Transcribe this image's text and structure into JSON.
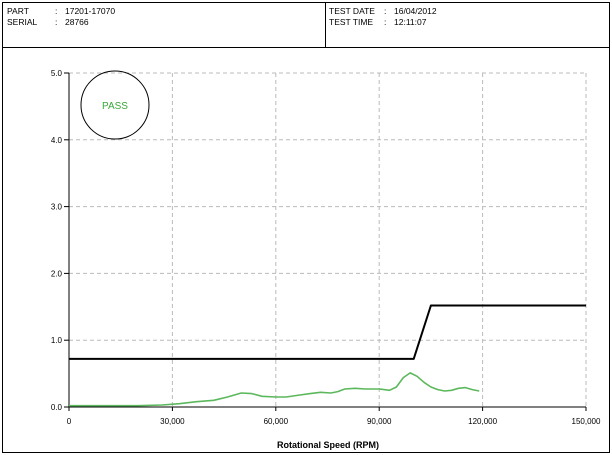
{
  "header": {
    "part_label": "PART",
    "part_value": "17201-17070",
    "serial_label": "SERIAL",
    "serial_value": "28766",
    "test_date_label": "TEST DATE",
    "test_date_value": "16/04/2012",
    "test_time_label": "TEST TIME",
    "test_time_value": "12:11:07",
    "separator": ":"
  },
  "status": {
    "text": "PASS",
    "color": "#3aa83a"
  },
  "colors": {
    "limit_line": "#000000",
    "measurement": "#5cb85c",
    "grid": "#bbbbbb"
  },
  "chart_data": {
    "type": "line",
    "title": "",
    "xlabel": "Rotational Speed (RPM)",
    "ylabel": "",
    "xlim": [
      0,
      150000
    ],
    "ylim": [
      0,
      5
    ],
    "x_ticks": [
      0,
      30000,
      60000,
      90000,
      120000,
      150000
    ],
    "x_tick_labels": [
      "0",
      "30,000",
      "60,000",
      "90,000",
      "120,000",
      "150,000"
    ],
    "y_ticks": [
      0,
      1,
      2,
      3,
      4,
      5
    ],
    "y_tick_labels": [
      "0.0",
      "1.0",
      "2.0",
      "3.0",
      "4.0",
      "5.0"
    ],
    "grid": true,
    "series": [
      {
        "role": "limit",
        "x": [
          0,
          100000,
          105000,
          150000
        ],
        "y": [
          0.72,
          0.72,
          1.52,
          1.52
        ]
      },
      {
        "role": "measurement",
        "x": [
          0,
          10000,
          20000,
          27000,
          32000,
          37000,
          42000,
          46000,
          50000,
          53000,
          56000,
          60000,
          63000,
          67000,
          70000,
          73000,
          76000,
          78000,
          80000,
          83000,
          86000,
          90000,
          93000,
          95000,
          97000,
          99000,
          101000,
          103000,
          105000,
          107000,
          109000,
          111000,
          113000,
          115000,
          117000,
          119000
        ],
        "y": [
          0.02,
          0.02,
          0.02,
          0.03,
          0.05,
          0.08,
          0.1,
          0.15,
          0.21,
          0.2,
          0.16,
          0.15,
          0.15,
          0.18,
          0.2,
          0.22,
          0.21,
          0.23,
          0.27,
          0.28,
          0.27,
          0.27,
          0.25,
          0.3,
          0.44,
          0.51,
          0.46,
          0.37,
          0.3,
          0.26,
          0.24,
          0.25,
          0.28,
          0.29,
          0.26,
          0.24
        ]
      }
    ]
  }
}
